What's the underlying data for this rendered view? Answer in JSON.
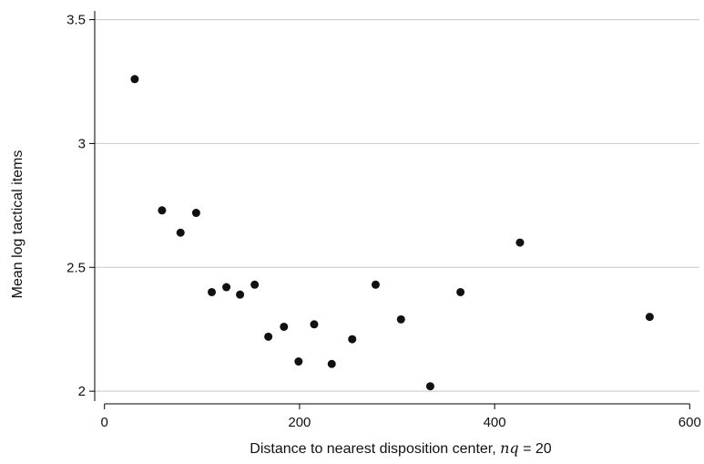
{
  "chart_data": {
    "type": "scatter",
    "title": "",
    "xlabel_prefix": "Distance to nearest disposition center, ",
    "xlabel_var": "nq",
    "xlabel_suffix": " = 20",
    "ylabel": "Mean log tactical items",
    "xlim": [
      -10,
      610
    ],
    "ylim": [
      1.96,
      3.55
    ],
    "xticks": [
      0,
      200,
      400,
      600
    ],
    "xtick_labels": [
      "0",
      "200",
      "400",
      "600"
    ],
    "yticks": [
      2,
      2.5,
      3,
      3.5
    ],
    "ytick_labels": [
      "2",
      "2.5",
      "3",
      "3.5"
    ],
    "grid": "horizontal",
    "legend": "none",
    "colors": {
      "points": "#111111",
      "grid": "#c8c8c8",
      "axis": "#000000"
    },
    "series": [
      {
        "points": [
          {
            "x": 31,
            "y": 3.26
          },
          {
            "x": 59,
            "y": 2.73
          },
          {
            "x": 78,
            "y": 2.64
          },
          {
            "x": 94,
            "y": 2.72
          },
          {
            "x": 110,
            "y": 2.4
          },
          {
            "x": 125,
            "y": 2.42
          },
          {
            "x": 139,
            "y": 2.39
          },
          {
            "x": 154,
            "y": 2.43
          },
          {
            "x": 168,
            "y": 2.22
          },
          {
            "x": 184,
            "y": 2.26
          },
          {
            "x": 199,
            "y": 2.12
          },
          {
            "x": 215,
            "y": 2.27
          },
          {
            "x": 233,
            "y": 2.11
          },
          {
            "x": 254,
            "y": 2.21
          },
          {
            "x": 278,
            "y": 2.43
          },
          {
            "x": 304,
            "y": 2.29
          },
          {
            "x": 334,
            "y": 2.02
          },
          {
            "x": 365,
            "y": 2.4
          },
          {
            "x": 426,
            "y": 2.6
          },
          {
            "x": 559,
            "y": 2.3
          }
        ]
      }
    ]
  }
}
